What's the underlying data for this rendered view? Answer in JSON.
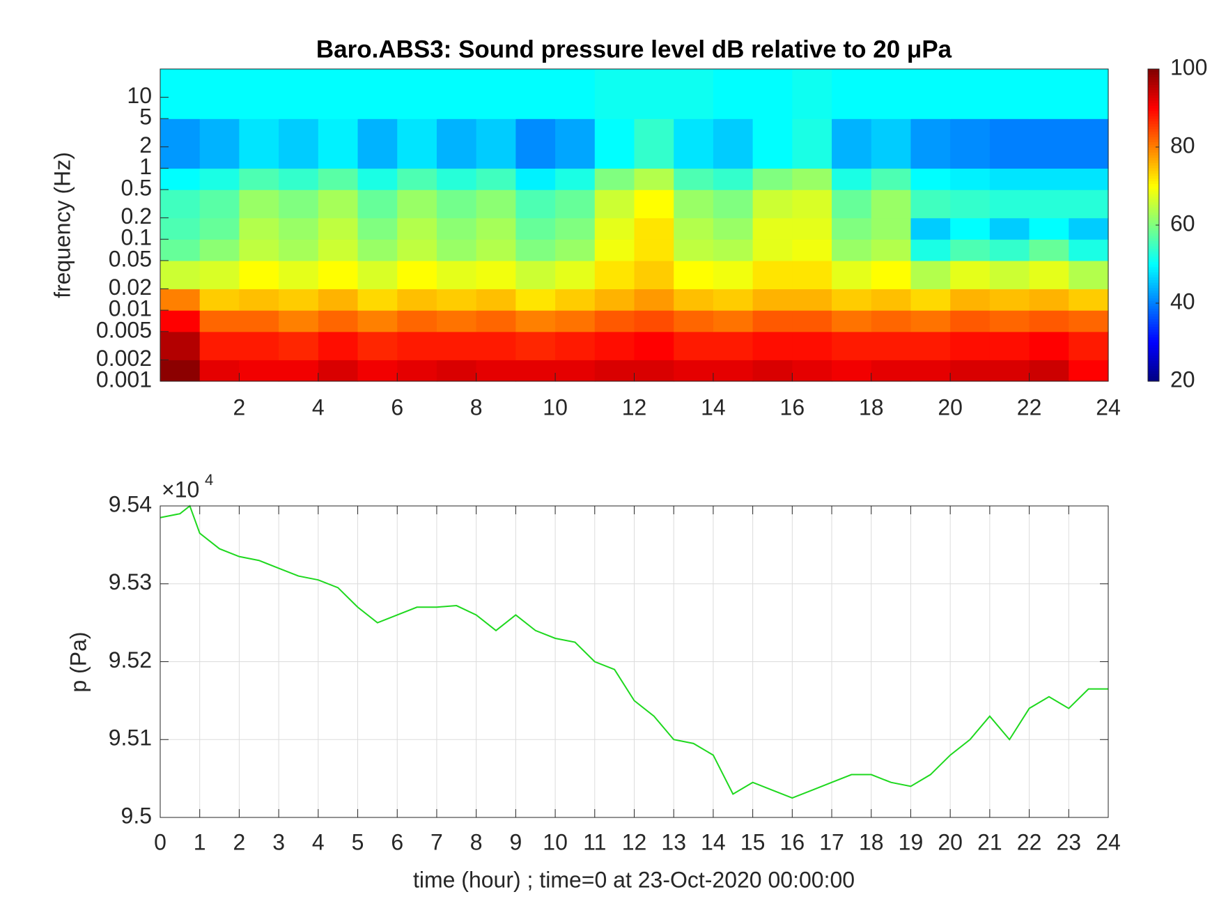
{
  "chart_data": [
    {
      "type": "heatmap",
      "title": "Baro.ABS3: Sound pressure level dB relative to 20 μPa",
      "y_label": "frequency (Hz)",
      "colormap": "jet",
      "ylog": true,
      "xbins": [
        0,
        1,
        2,
        3,
        4,
        5,
        6,
        7,
        8,
        9,
        10,
        11,
        12,
        13,
        14,
        15,
        16,
        17,
        18,
        19,
        20,
        21,
        22,
        23,
        24
      ],
      "ybins": [
        0.001,
        0.002,
        0.005,
        0.01,
        0.02,
        0.05,
        0.1,
        0.2,
        0.5,
        1,
        5,
        25
      ],
      "values": [
        [
          99,
          92,
          91,
          91,
          93,
          91,
          92,
          93,
          92,
          92,
          92,
          93,
          93,
          92,
          92,
          93,
          92,
          91,
          92,
          92,
          93,
          93,
          94,
          90
        ],
        [
          96,
          88,
          88,
          87,
          89,
          87,
          88,
          88,
          88,
          87,
          88,
          89,
          90,
          88,
          88,
          89,
          89,
          88,
          88,
          88,
          89,
          89,
          90,
          88
        ],
        [
          90,
          82,
          82,
          80,
          82,
          80,
          82,
          81,
          82,
          80,
          81,
          83,
          84,
          82,
          81,
          83,
          83,
          81,
          82,
          81,
          83,
          82,
          83,
          82
        ],
        [
          80,
          74,
          75,
          74,
          76,
          73,
          75,
          74,
          75,
          72,
          74,
          76,
          78,
          75,
          74,
          76,
          76,
          74,
          75,
          73,
          76,
          75,
          76,
          74
        ],
        [
          66,
          67,
          70,
          68,
          70,
          67,
          70,
          68,
          69,
          66,
          68,
          72,
          74,
          70,
          69,
          72,
          72,
          68,
          70,
          64,
          68,
          66,
          68,
          64
        ],
        [
          58,
          61,
          65,
          63,
          66,
          62,
          65,
          62,
          64,
          60,
          62,
          69,
          72,
          65,
          64,
          68,
          69,
          62,
          64,
          52,
          56,
          54,
          58,
          52
        ],
        [
          56,
          58,
          64,
          62,
          65,
          60,
          64,
          61,
          63,
          58,
          60,
          68,
          72,
          64,
          62,
          68,
          68,
          60,
          62,
          46,
          50,
          46,
          50,
          46
        ],
        [
          55,
          57,
          62,
          60,
          63,
          58,
          62,
          59,
          61,
          56,
          58,
          66,
          70,
          62,
          60,
          66,
          67,
          58,
          62,
          55,
          54,
          53,
          53,
          53
        ],
        [
          50,
          52,
          56,
          54,
          57,
          52,
          56,
          53,
          55,
          49,
          52,
          60,
          64,
          56,
          54,
          60,
          62,
          52,
          56,
          50,
          49,
          48,
          48,
          48
        ],
        [
          42,
          44,
          48,
          46,
          49,
          44,
          48,
          44,
          46,
          41,
          43,
          50,
          54,
          48,
          46,
          50,
          52,
          44,
          46,
          42,
          41,
          40,
          40,
          40
        ],
        [
          50,
          50,
          50,
          50,
          50,
          50,
          50,
          50,
          50,
          50,
          50,
          51,
          51,
          51,
          50,
          50,
          51,
          50,
          50,
          50,
          50,
          50,
          50,
          50
        ]
      ],
      "xlim": [
        0,
        24
      ],
      "xticks": [
        2,
        4,
        6,
        8,
        10,
        12,
        14,
        16,
        18,
        20,
        22,
        24
      ],
      "ylim": [
        0.001,
        25
      ],
      "yticks": [
        0.001,
        0.002,
        0.005,
        0.01,
        0.02,
        0.05,
        0.1,
        0.2,
        0.5,
        1,
        2,
        5,
        10
      ],
      "clim": [
        20,
        100
      ],
      "cticks": [
        20,
        40,
        60,
        80,
        100
      ]
    },
    {
      "type": "line",
      "x_label": "time (hour) ; time=0 at 23-Oct-2020 00:00:00",
      "y_label": "p (Pa)",
      "y_multiplier": {
        "base": "×10",
        "exponent": "4"
      },
      "color": "#1ed81e",
      "grid": true,
      "x": [
        0,
        0.5,
        0.75,
        1,
        1.5,
        2,
        2.5,
        3,
        3.5,
        4,
        4.5,
        5,
        5.5,
        6,
        6.5,
        7,
        7.5,
        8,
        8.5,
        9,
        9.5,
        10,
        10.5,
        11,
        11.5,
        12,
        12.5,
        13,
        13.5,
        14,
        14.5,
        15,
        15.5,
        16,
        16.5,
        17,
        17.5,
        18,
        18.5,
        19,
        19.5,
        20,
        20.5,
        21,
        21.5,
        22,
        22.5,
        23,
        23.5,
        24
      ],
      "values": [
        95385,
        95390,
        95400,
        95365,
        95345,
        95335,
        95330,
        95320,
        95310,
        95305,
        95295,
        95270,
        95250,
        95260,
        95270,
        95270,
        95272,
        95260,
        95240,
        95260,
        95240,
        95230,
        95225,
        95200,
        95190,
        95150,
        95130,
        95100,
        95095,
        95080,
        95030,
        95045,
        95035,
        95025,
        95035,
        95045,
        95055,
        95055,
        95045,
        95040,
        95055,
        95080,
        95100,
        95130,
        95100,
        95140,
        95155,
        95140,
        95165,
        95165
      ],
      "xlim": [
        0,
        24
      ],
      "xticks": [
        0,
        1,
        2,
        3,
        4,
        5,
        6,
        7,
        8,
        9,
        10,
        11,
        12,
        13,
        14,
        15,
        16,
        17,
        18,
        19,
        20,
        21,
        22,
        23,
        24
      ],
      "ylim": [
        95000,
        95400
      ],
      "yticks": [
        {
          "value": 95000,
          "label": "9.5"
        },
        {
          "value": 95100,
          "label": "9.51"
        },
        {
          "value": 95200,
          "label": "9.52"
        },
        {
          "value": 95300,
          "label": "9.53"
        },
        {
          "value": 95400,
          "label": "9.54"
        }
      ]
    }
  ]
}
